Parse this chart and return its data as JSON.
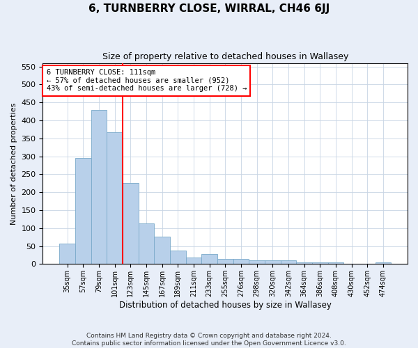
{
  "title": "6, TURNBERRY CLOSE, WIRRAL, CH46 6JJ",
  "subtitle": "Size of property relative to detached houses in Wallasey",
  "xlabel": "Distribution of detached houses by size in Wallasey",
  "ylabel": "Number of detached properties",
  "footer_line1": "Contains HM Land Registry data © Crown copyright and database right 2024.",
  "footer_line2": "Contains public sector information licensed under the Open Government Licence v3.0.",
  "categories": [
    "35sqm",
    "57sqm",
    "79sqm",
    "101sqm",
    "123sqm",
    "145sqm",
    "167sqm",
    "189sqm",
    "211sqm",
    "233sqm",
    "255sqm",
    "276sqm",
    "298sqm",
    "320sqm",
    "342sqm",
    "364sqm",
    "386sqm",
    "408sqm",
    "430sqm",
    "452sqm",
    "474sqm"
  ],
  "values": [
    57,
    295,
    430,
    368,
    225,
    113,
    76,
    38,
    18,
    27,
    15,
    15,
    10,
    10,
    10,
    5,
    5,
    5,
    0,
    0,
    5
  ],
  "bar_color": "#b8d0ea",
  "bar_edge_color": "#7aaaca",
  "vline_color": "red",
  "vline_x": 3.5,
  "ylim": [
    0,
    560
  ],
  "yticks": [
    0,
    50,
    100,
    150,
    200,
    250,
    300,
    350,
    400,
    450,
    500,
    550
  ],
  "annotation_text": "6 TURNBERRY CLOSE: 111sqm\n← 57% of detached houses are smaller (952)\n43% of semi-detached houses are larger (728) →",
  "annotation_box_color": "white",
  "annotation_box_edge_color": "red",
  "bg_color": "#e8eef8",
  "plot_bg_color": "white",
  "grid_color": "#c8d4e4"
}
